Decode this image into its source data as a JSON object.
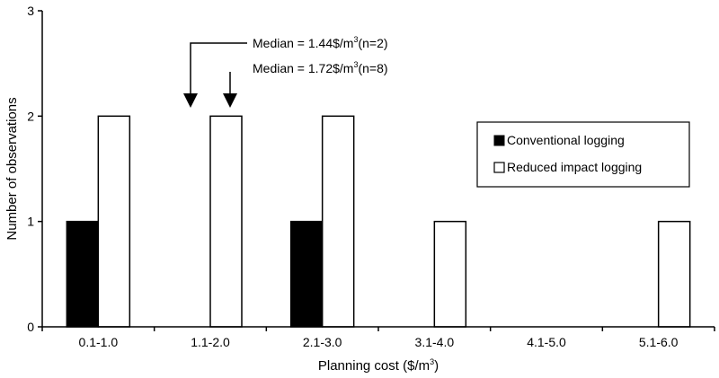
{
  "chart_data": {
    "type": "bar",
    "title": "",
    "xlabel_prefix": "Planning cost ($/m",
    "xlabel_sup": "3",
    "xlabel_suffix": ")",
    "ylabel": "Number of observations",
    "ylim": [
      0,
      3
    ],
    "yticks": [
      "0",
      "1",
      "2",
      "3"
    ],
    "categories": [
      "0.1-1.0",
      "1.1-2.0",
      "2.1-3.0",
      "3.1-4.0",
      "4.1-5.0",
      "5.1-6.0"
    ],
    "series": [
      {
        "name": "Conventional logging",
        "color": "#000000",
        "values": [
          1,
          0,
          1,
          0,
          0,
          0
        ]
      },
      {
        "name": "Reduced impact logging",
        "color": "#ffffff",
        "values": [
          2,
          2,
          2,
          1,
          0,
          1
        ]
      }
    ],
    "legend_position": "right",
    "annotations": [
      {
        "prefix": "Median = 1.44$/m",
        "sup": "3",
        "suffix": "(n=2)",
        "x_value": 1.44,
        "series": "Conventional logging"
      },
      {
        "prefix": "Median = 1.72$/m",
        "sup": "3",
        "suffix": "(n=8)",
        "x_value": 1.72,
        "series": "Reduced impact logging"
      }
    ]
  }
}
